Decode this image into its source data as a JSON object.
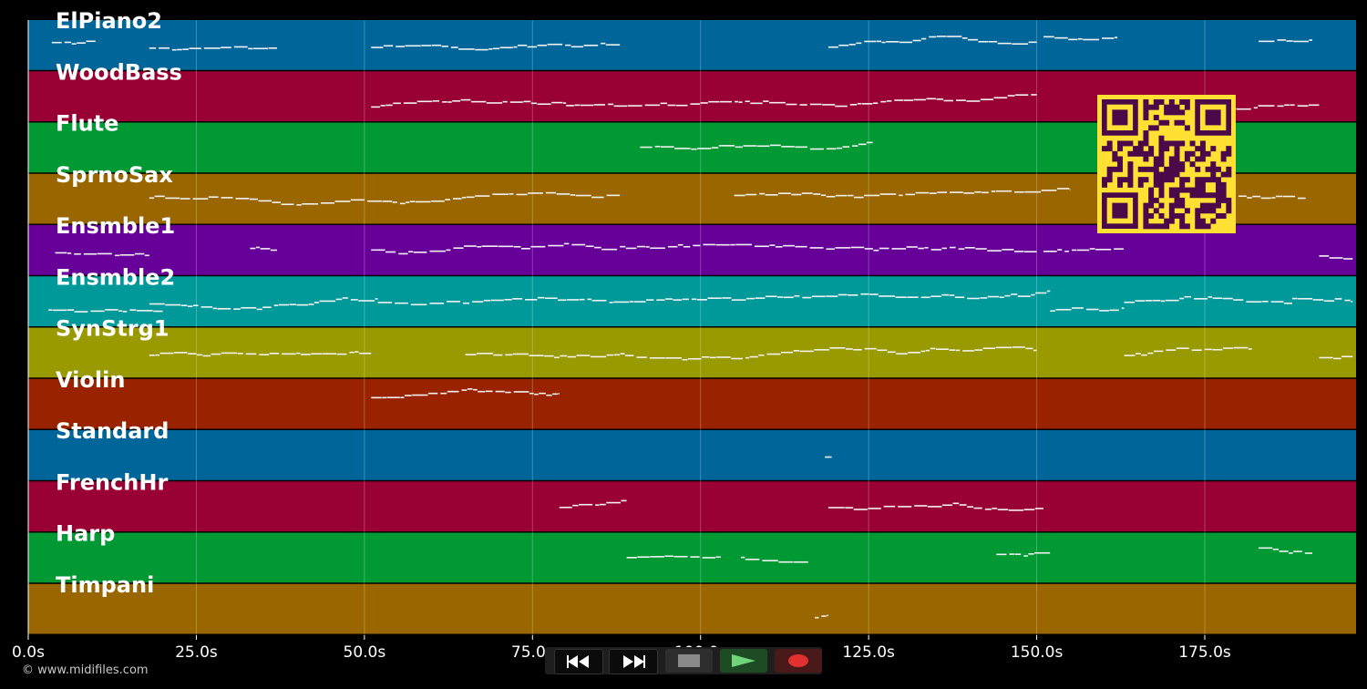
{
  "track_labels": [
    "ElPiano2",
    "WoodBass",
    "Flute",
    "SprnoSax",
    "Ensmble1",
    "Ensmble2",
    "SynStrg1",
    "Violin",
    "Standard",
    "FrenchHr",
    "Harp",
    "Timpani"
  ],
  "track_colors": [
    "#006699",
    "#990033",
    "#009933",
    "#996600",
    "#660099",
    "#009999",
    "#999900",
    "#992200",
    "#006699",
    "#990033",
    "#009933",
    "#996600"
  ],
  "time_axis": {
    "ticks": [
      0,
      25,
      50,
      75,
      100,
      125,
      150,
      175
    ],
    "labels": [
      "0.0s",
      "25.0s",
      "50.0s",
      "75.0s",
      "100.0s",
      "125.0s",
      "150.0s",
      "175.0s"
    ],
    "max_seconds": 197.5
  },
  "copyright": "© www.midifiles.com",
  "transport": {
    "rewind_icon": "rewind-icon",
    "fast_forward_icon": "fast-forward-icon",
    "stop_icon": "stop-icon",
    "play_icon": "play-icon",
    "record_icon": "record-icon"
  },
  "qr_code": {
    "color_bg": "#ffe033",
    "color_fg": "#4a0a4a"
  },
  "notes": [
    {
      "t": 0,
      "start": 3.5,
      "end": 10,
      "pitch": 0.42
    },
    {
      "t": 0,
      "start": 18,
      "end": 37,
      "pitch": 0.52
    },
    {
      "t": 0,
      "start": 51,
      "end": 88,
      "pitch": 0.55
    },
    {
      "t": 0,
      "start": 119,
      "end": 150,
      "pitch": 0.55
    },
    {
      "t": 0,
      "start": 151,
      "end": 162,
      "pitch": 0.3
    },
    {
      "t": 0,
      "start": 183,
      "end": 191,
      "pitch": 0.4
    },
    {
      "t": 1,
      "start": 51,
      "end": 80,
      "pitch": 0.65
    },
    {
      "t": 1,
      "start": 80,
      "end": 120,
      "pitch": 0.65
    },
    {
      "t": 1,
      "start": 120,
      "end": 150,
      "pitch": 0.65
    },
    {
      "t": 1,
      "start": 160,
      "end": 192,
      "pitch": 0.62
    },
    {
      "t": 2,
      "start": 91,
      "end": 126,
      "pitch": 0.45
    },
    {
      "t": 3,
      "start": 18,
      "end": 88,
      "pitch": 0.45
    },
    {
      "t": 3,
      "start": 105,
      "end": 155,
      "pitch": 0.42
    },
    {
      "t": 3,
      "start": 180,
      "end": 190,
      "pitch": 0.42
    },
    {
      "t": 4,
      "start": 4,
      "end": 18,
      "pitch": 0.5
    },
    {
      "t": 4,
      "start": 33,
      "end": 37,
      "pitch": 0.42
    },
    {
      "t": 4,
      "start": 51,
      "end": 88,
      "pitch": 0.45
    },
    {
      "t": 4,
      "start": 88,
      "end": 150,
      "pitch": 0.4
    },
    {
      "t": 4,
      "start": 151,
      "end": 163,
      "pitch": 0.5
    },
    {
      "t": 4,
      "start": 192,
      "end": 197,
      "pitch": 0.62
    },
    {
      "t": 5,
      "start": 3,
      "end": 20,
      "pitch": 0.62
    },
    {
      "t": 5,
      "start": 18,
      "end": 52,
      "pitch": 0.52
    },
    {
      "t": 5,
      "start": 52,
      "end": 152,
      "pitch": 0.52
    },
    {
      "t": 5,
      "start": 152,
      "end": 163,
      "pitch": 0.65
    },
    {
      "t": 5,
      "start": 163,
      "end": 188,
      "pitch": 0.52
    },
    {
      "t": 5,
      "start": 188,
      "end": 197,
      "pitch": 0.4
    },
    {
      "t": 6,
      "start": 18,
      "end": 51,
      "pitch": 0.55
    },
    {
      "t": 6,
      "start": 65,
      "end": 150,
      "pitch": 0.55
    },
    {
      "t": 6,
      "start": 163,
      "end": 182,
      "pitch": 0.55
    },
    {
      "t": 6,
      "start": 192,
      "end": 197,
      "pitch": 0.55
    },
    {
      "t": 7,
      "start": 51,
      "end": 79,
      "pitch": 0.38
    },
    {
      "t": 8,
      "start": 118.5,
      "end": 119.5,
      "pitch": 0.55
    },
    {
      "t": 9,
      "start": 79,
      "end": 89,
      "pitch": 0.5
    },
    {
      "t": 9,
      "start": 119,
      "end": 151,
      "pitch": 0.48
    },
    {
      "t": 10,
      "start": 89,
      "end": 103,
      "pitch": 0.45
    },
    {
      "t": 10,
      "start": 106,
      "end": 116,
      "pitch": 0.43
    },
    {
      "t": 10,
      "start": 144,
      "end": 152,
      "pitch": 0.43
    },
    {
      "t": 10,
      "start": 183,
      "end": 191,
      "pitch": 0.32
    },
    {
      "t": 11,
      "start": 117,
      "end": 119,
      "pitch": 0.62
    }
  ]
}
